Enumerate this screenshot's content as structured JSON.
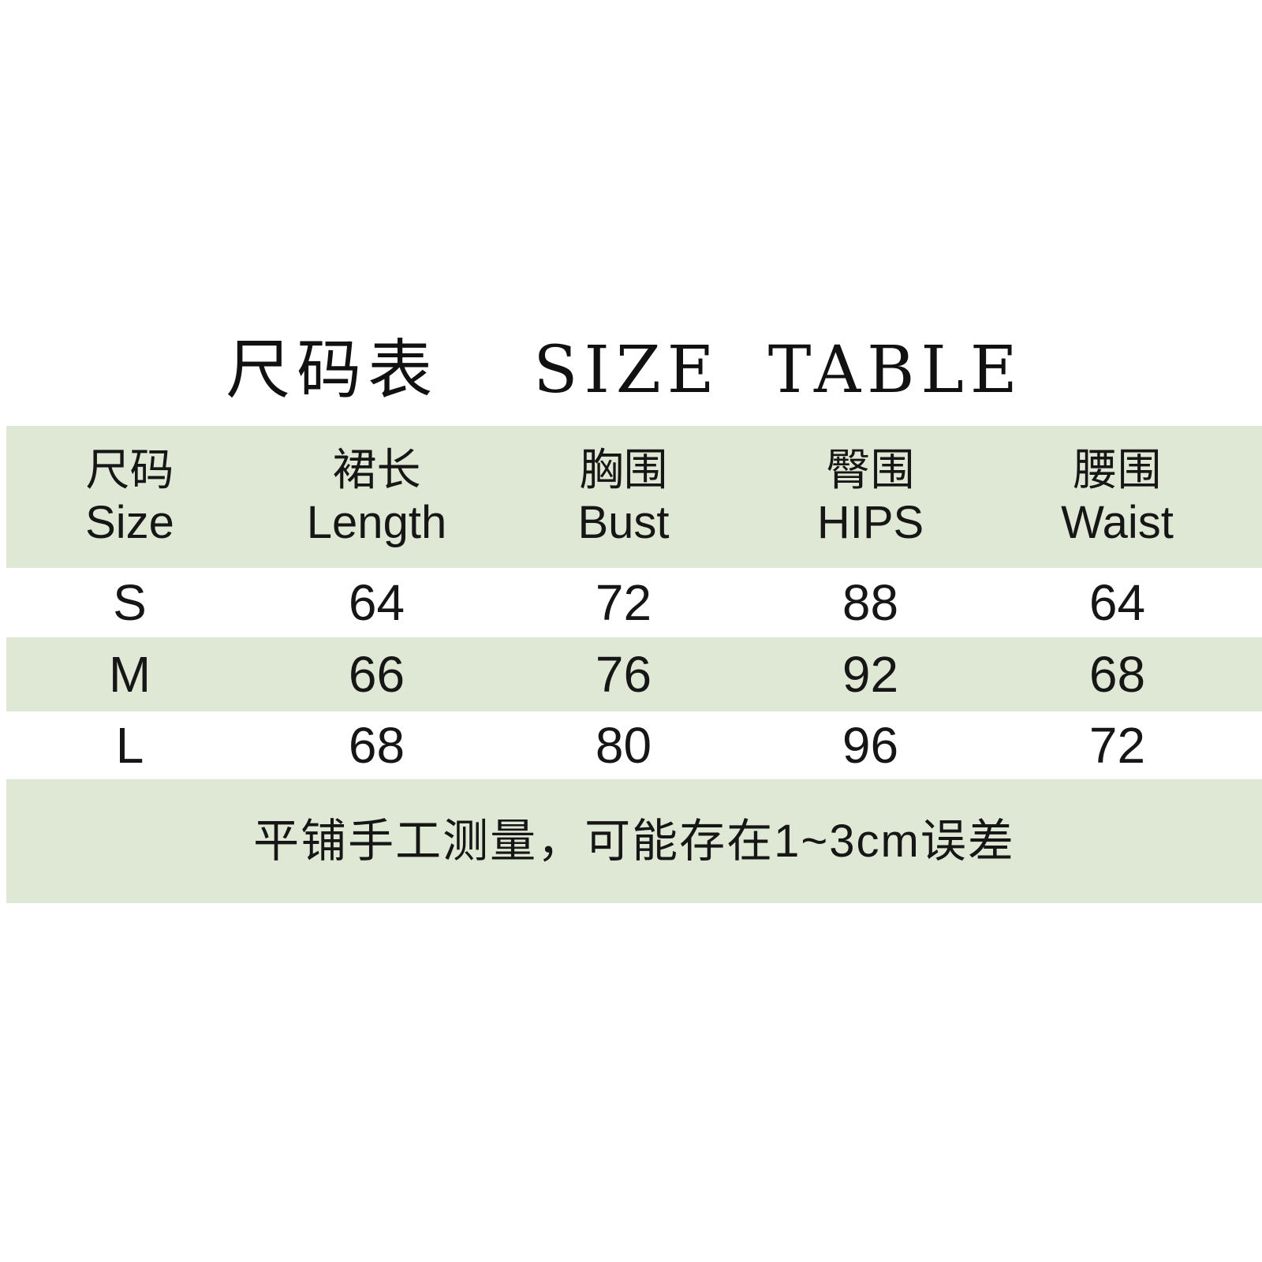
{
  "page": {
    "background_color": "#ffffff",
    "band_color": "#dfe8d4",
    "text_color": "#161616"
  },
  "title": {
    "zh": "尺码表",
    "en": "SIZE TABLE"
  },
  "size_table": {
    "columns": [
      {
        "zh": "尺码",
        "en": "Size"
      },
      {
        "zh": "裙长",
        "en": "Length"
      },
      {
        "zh": "胸围",
        "en": "Bust"
      },
      {
        "zh": "臀围",
        "en": "HIPS"
      },
      {
        "zh": "腰围",
        "en": "Waist"
      }
    ],
    "rows": [
      {
        "size": "S",
        "length": "64",
        "bust": "72",
        "hips": "88",
        "waist": "64"
      },
      {
        "size": "M",
        "length": "66",
        "bust": "76",
        "hips": "92",
        "waist": "68"
      },
      {
        "size": "L",
        "length": "68",
        "bust": "80",
        "hips": "96",
        "waist": "72"
      }
    ]
  },
  "note": "平铺手工测量，可能存在1~3cm误差",
  "chart_data": {
    "type": "table",
    "title": "尺码表 SIZE TABLE",
    "columns": [
      "尺码 Size",
      "裙长 Length",
      "胸围 Bust",
      "臀围 HIPS",
      "腰围 Waist"
    ],
    "rows": [
      [
        "S",
        64,
        72,
        88,
        64
      ],
      [
        "M",
        66,
        76,
        92,
        68
      ],
      [
        "L",
        68,
        80,
        96,
        72
      ]
    ],
    "footnote": "平铺手工测量，可能存在1~3cm误差",
    "layout": {
      "banding": "alternating header/M/footnote bands in pale green",
      "alignment": "center"
    }
  }
}
